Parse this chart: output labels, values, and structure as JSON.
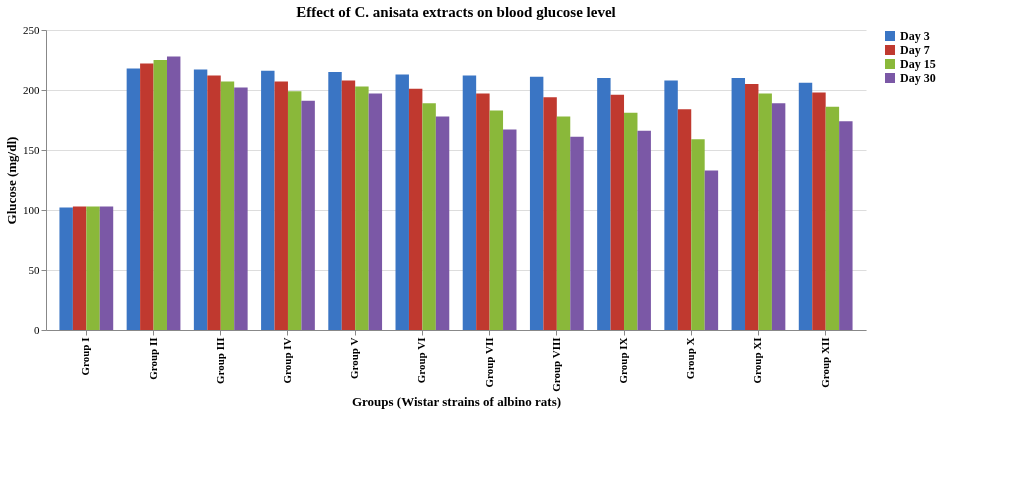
{
  "chart_data": {
    "type": "bar",
    "title": "Effect of C. anisata extracts on blood glucose level",
    "xlabel": "Groups (Wistar strains of albino rats)",
    "ylabel": "Glucose (mg/dl)",
    "categories": [
      "Group I",
      "Group II",
      "Group III",
      "Group IV",
      "Group V",
      "Group VI",
      "Group VII",
      "Group VIII",
      "Group IX",
      "Group X",
      "Group XI",
      "Group XII"
    ],
    "series": [
      {
        "name": "Day 3",
        "color": "#3a75c4",
        "values": [
          102,
          218,
          217,
          216,
          215,
          213,
          212,
          211,
          210,
          208,
          210,
          206
        ]
      },
      {
        "name": "Day 7",
        "color": "#c0392f",
        "values": [
          103,
          222,
          212,
          207,
          208,
          201,
          197,
          194,
          196,
          184,
          205,
          198
        ]
      },
      {
        "name": "Day 15",
        "color": "#8ab83a",
        "values": [
          103,
          225,
          207,
          199,
          203,
          189,
          183,
          178,
          181,
          159,
          197,
          186
        ]
      },
      {
        "name": "Day 30",
        "color": "#7b58a6",
        "values": [
          103,
          228,
          202,
          191,
          197,
          178,
          167,
          161,
          166,
          133,
          189,
          174
        ]
      }
    ],
    "ylim": [
      0,
      250
    ],
    "yticks": [
      0,
      50,
      100,
      150,
      200,
      250
    ],
    "grid": "y",
    "legend": "right"
  }
}
